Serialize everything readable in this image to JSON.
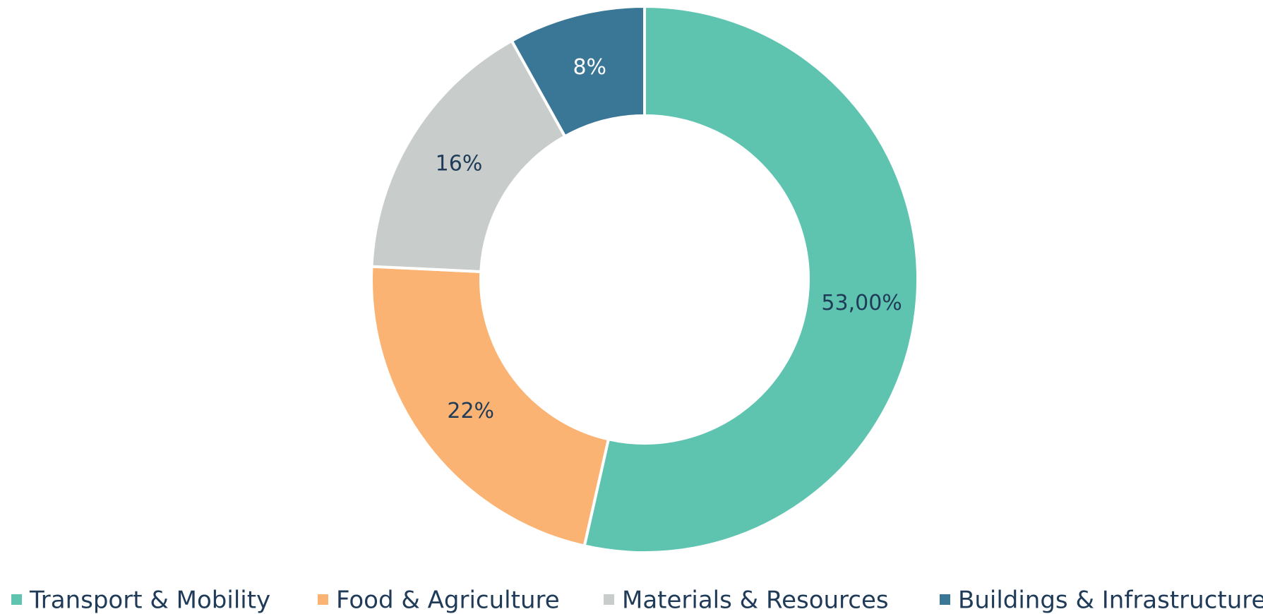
{
  "chart_data": {
    "type": "donut",
    "categories": [
      "Transport & Mobility",
      "Food & Agriculture",
      "Materials & Resources",
      "Buildings & Infrastructure"
    ],
    "values": [
      53,
      22,
      16,
      8
    ],
    "value_labels": [
      "53,00%",
      "22%",
      "16%",
      "8%"
    ],
    "colors": [
      "#5ec4b0",
      "#fbb374",
      "#c8cdcb",
      "#3a7797"
    ],
    "legend": "bottom"
  }
}
